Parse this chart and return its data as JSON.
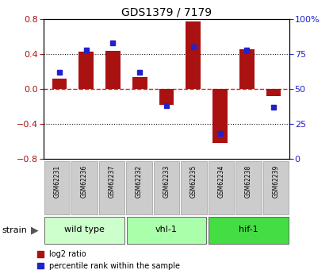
{
  "title": "GDS1379 / 7179",
  "samples": [
    "GSM62231",
    "GSM62236",
    "GSM62237",
    "GSM62232",
    "GSM62233",
    "GSM62235",
    "GSM62234",
    "GSM62238",
    "GSM62239"
  ],
  "log2_ratio": [
    0.12,
    0.43,
    0.44,
    0.14,
    -0.18,
    0.77,
    -0.62,
    0.46,
    -0.08
  ],
  "percentile_rank": [
    62,
    78,
    83,
    62,
    38,
    80,
    18,
    78,
    37
  ],
  "groups": [
    {
      "label": "wild type",
      "indices": [
        0,
        1,
        2
      ],
      "color": "#ccffcc"
    },
    {
      "label": "vhl-1",
      "indices": [
        3,
        4,
        5
      ],
      "color": "#aaffaa"
    },
    {
      "label": "hif-1",
      "indices": [
        6,
        7,
        8
      ],
      "color": "#44dd44"
    }
  ],
  "bar_color": "#aa1111",
  "dot_color": "#2222cc",
  "ylim_left": [
    -0.8,
    0.8
  ],
  "ylim_right": [
    0,
    100
  ],
  "yticks_left": [
    -0.8,
    -0.4,
    0.0,
    0.4,
    0.8
  ],
  "yticks_right": [
    0,
    25,
    50,
    75,
    100
  ],
  "hline_color": "#dd2222",
  "grid_color": "#111111",
  "bg_color": "#ffffff",
  "legend_red_label": "log2 ratio",
  "legend_blue_label": "percentile rank within the sample",
  "sample_box_color": "#cccccc",
  "sample_box_edge": "#999999"
}
